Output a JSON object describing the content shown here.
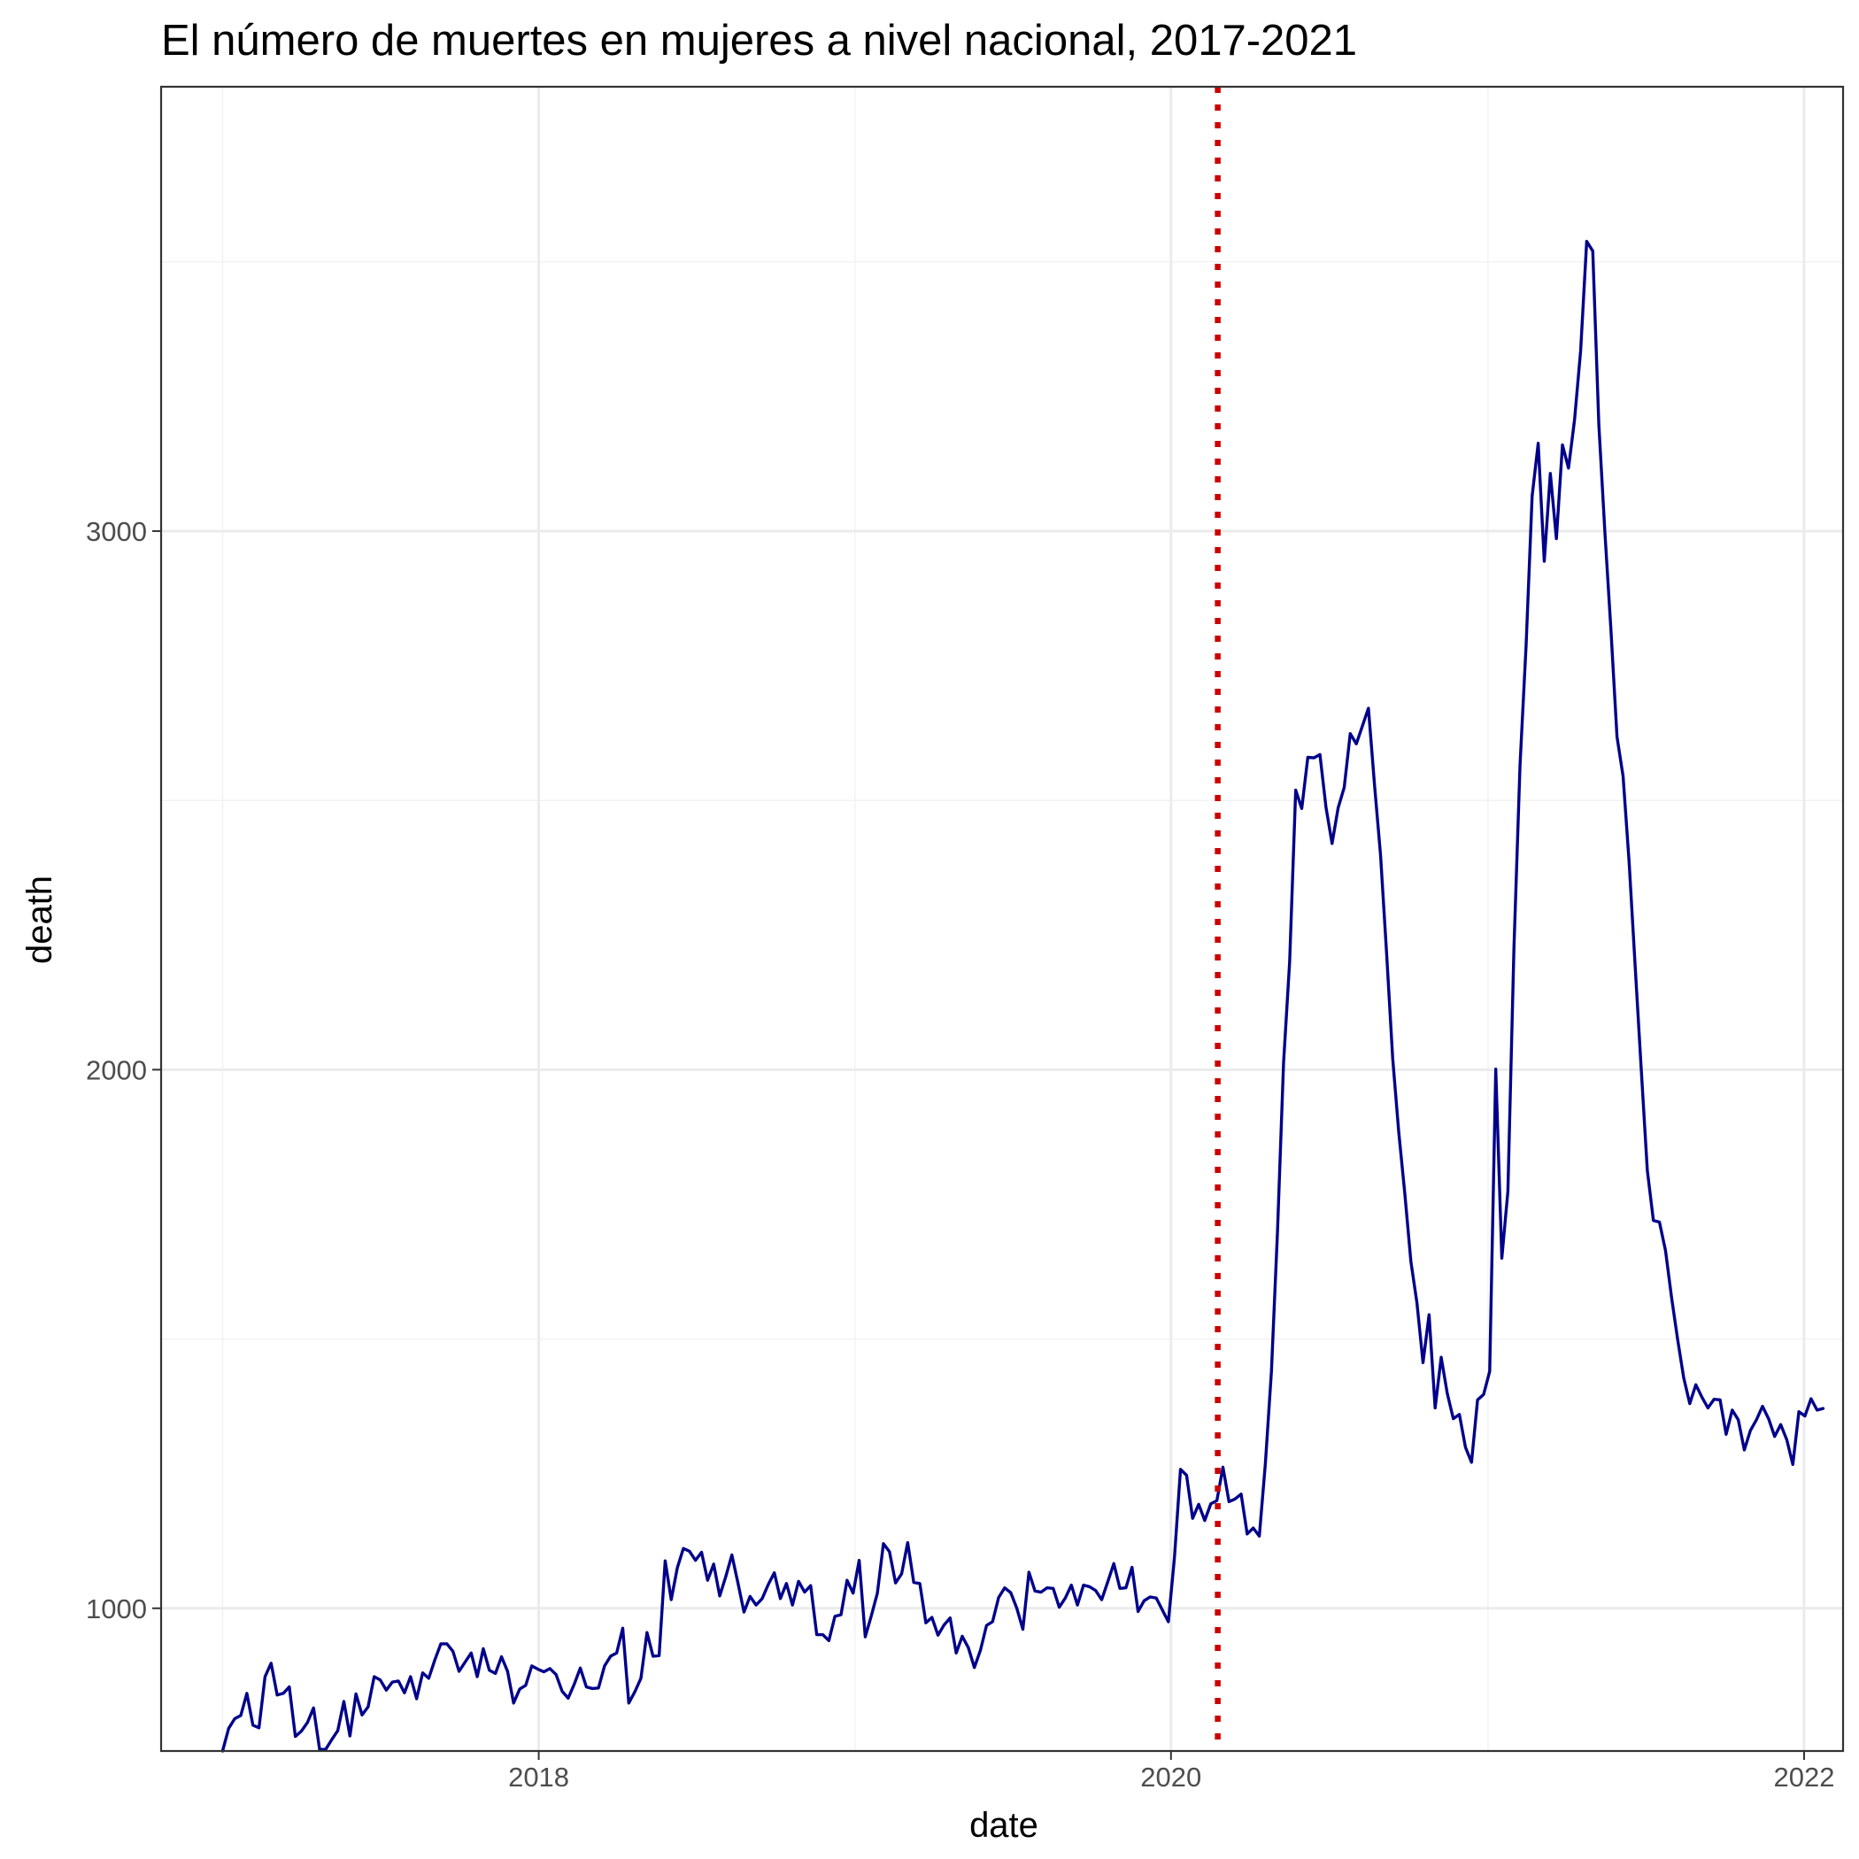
{
  "chart_data": {
    "type": "line",
    "title": "El número de muertes en mujeres a nivel nacional, 2017-2021",
    "xlabel": "date",
    "ylabel": "death",
    "x_domain": [
      "2016-10-22",
      "2022-02-15"
    ],
    "ylim": [
      735,
      3825
    ],
    "x_ticks": [
      {
        "label": "2018",
        "date": "2018-01-01"
      },
      {
        "label": "2020",
        "date": "2020-01-01"
      },
      {
        "label": "2022",
        "date": "2022-01-01"
      }
    ],
    "x_minor_ticks": [
      "2017-01-01",
      "2019-01-01",
      "2021-01-01"
    ],
    "y_ticks": [
      1000,
      2000,
      3000
    ],
    "y_minor_ticks": [
      1500,
      2500,
      3500
    ],
    "grid": true,
    "legend": "none",
    "colors": {
      "series": "#00008b",
      "reference_line": "#cc0000"
    },
    "reference_line": {
      "date": "2020-02-24",
      "style": "dotted"
    },
    "series": [
      {
        "start_date": "2017-01-01",
        "interval_days": 7,
        "values": [
          735,
          777,
          795,
          801,
          842,
          783,
          778,
          873,
          898,
          839,
          842,
          854,
          762,
          772,
          788,
          815,
          738,
          738,
          756,
          773,
          827,
          763,
          841,
          802,
          817,
          873,
          867,
          848,
          863,
          865,
          843,
          873,
          832,
          880,
          870,
          904,
          934,
          934,
          920,
          883,
          900,
          917,
          873,
          925,
          885,
          879,
          910,
          883,
          824,
          850,
          857,
          893,
          887,
          882,
          888,
          877,
          846,
          833,
          859,
          889,
          854,
          851,
          852,
          893,
          911,
          917,
          963,
          824,
          845,
          870,
          955,
          911,
          912,
          1088,
          1016,
          1075,
          1111,
          1106,
          1089,
          1104,
          1052,
          1082,
          1023,
          1059,
          1099,
          1047,
          993,
          1022,
          1006,
          1018,
          1044,
          1066,
          1018,
          1046,
          1006,
          1050,
          1030,
          1042,
          951,
          951,
          940,
          985,
          988,
          1052,
          1028,
          1089,
          947,
          986,
          1028,
          1120,
          1105,
          1047,
          1064,
          1122,
          1048,
          1046,
          973,
          983,
          950,
          969,
          982,
          917,
          948,
          927,
          890,
          922,
          968,
          975,
          1020,
          1038,
          1029,
          1000,
          961,
          1067,
          1032,
          1030,
          1038,
          1037,
          1002,
          1019,
          1043,
          1006,
          1043,
          1040,
          1033,
          1016,
          1049,
          1083,
          1037,
          1038,
          1076,
          994,
          1014,
          1021,
          1019,
          997,
          975,
          1094,
          1258,
          1247,
          1167,
          1193,
          1163,
          1194,
          1200,
          1262,
          1198,
          1203,
          1212,
          1138,
          1149,
          1134,
          1269,
          1440,
          1700,
          2013,
          2200,
          2519,
          2485,
          2580,
          2579,
          2585,
          2487,
          2420,
          2486,
          2524,
          2624,
          2605,
          2638,
          2671,
          2529,
          2398,
          2215,
          2021,
          1884,
          1770,
          1644,
          1567,
          1456,
          1545,
          1372,
          1466,
          1399,
          1352,
          1360,
          1299,
          1271,
          1387,
          1397,
          1440,
          2001,
          1650,
          1774,
          2226,
          2565,
          2787,
          3065,
          3163,
          2944,
          3107,
          2986,
          3160,
          3117,
          3207,
          3335,
          3538,
          3520,
          3198,
          2998,
          2816,
          2618,
          2545,
          2385,
          2191,
          2000,
          1813,
          1720,
          1717,
          1664,
          1577,
          1499,
          1428,
          1380,
          1415,
          1392,
          1372,
          1388,
          1387,
          1323,
          1368,
          1350,
          1294,
          1330,
          1350,
          1375,
          1352,
          1319,
          1341,
          1313,
          1267,
          1365,
          1357,
          1389,
          1368,
          1371
        ]
      }
    ]
  }
}
